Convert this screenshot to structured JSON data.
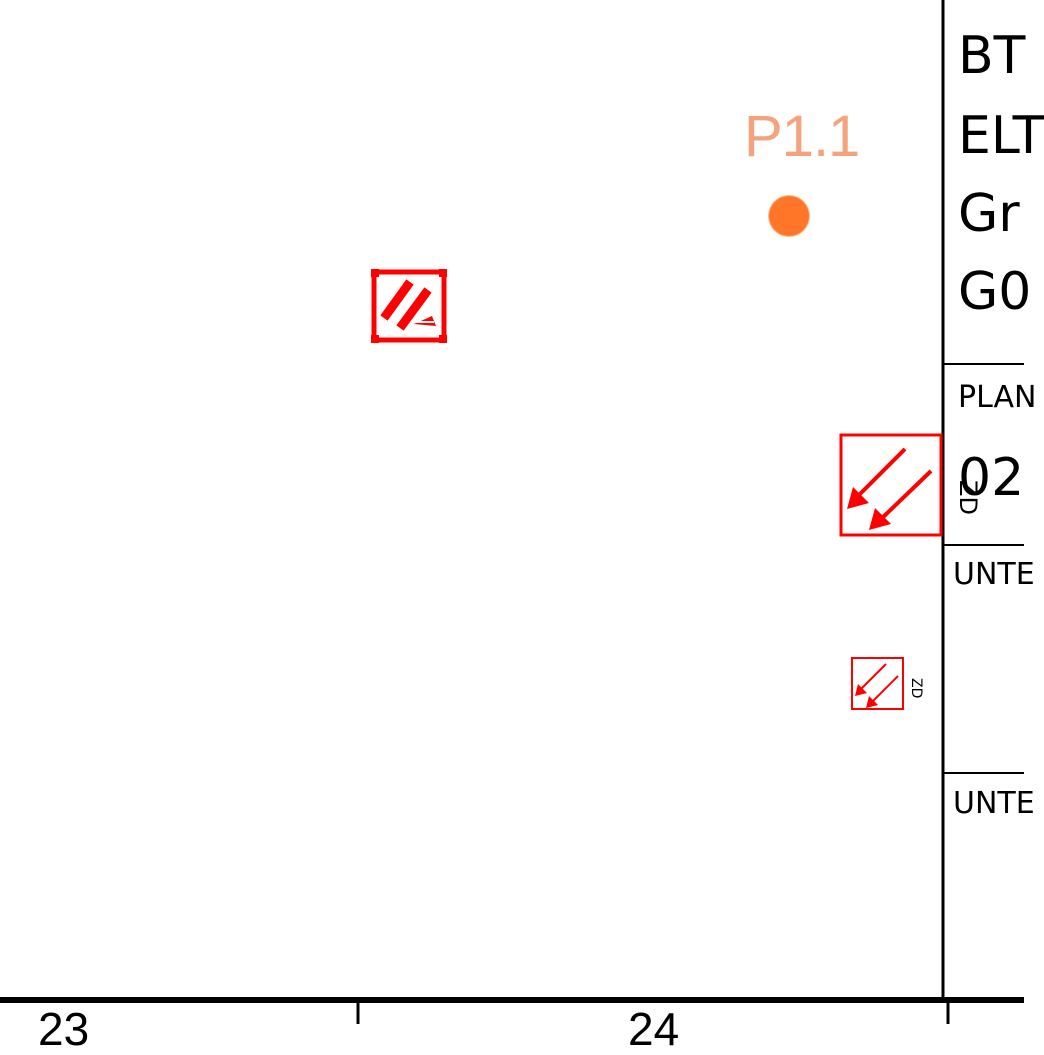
{
  "title_block": {
    "line1": "BT",
    "line2": "ELT",
    "line3": "Gr",
    "line4": "G0",
    "plan_label": "PLAN",
    "plan_number": "02",
    "untl_label_1": "UNTE",
    "untl_label_2": "UNTE"
  },
  "grid": {
    "label_left": "23",
    "label_right": "24"
  },
  "survey_point": {
    "label": "P1.1",
    "color": "#ff7628",
    "label_color": "#f4a37c"
  },
  "symbols": {
    "color": "#ff0000",
    "zd_label": "ZD",
    "icons": [
      "hatched-symbol-icon",
      "double-arrow-icon",
      "double-arrow-icon"
    ]
  }
}
